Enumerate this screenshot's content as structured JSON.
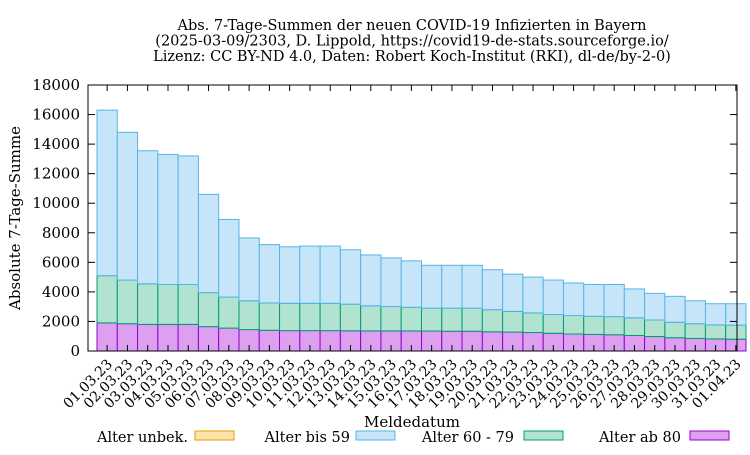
{
  "chart_data": {
    "type": "bar",
    "stacked": true,
    "title_lines": [
      "Abs. 7-Tage-Summen der neuen COVID-19 Infizierten in Bayern",
      "(2025-03-09/2303, D. Lippold, https://covid19-de-stats.sourceforge.io/",
      "Lizenz: CC BY-ND 4.0, Daten: Robert Koch-Institut (RKI), dl-de/by-2-0)"
    ],
    "xlabel": "Meldedatum",
    "ylabel": "Absolute 7-Tage-Summe",
    "ylim": [
      0,
      18000
    ],
    "yticks": [
      0,
      2000,
      4000,
      6000,
      8000,
      10000,
      12000,
      14000,
      16000,
      18000
    ],
    "grid": false,
    "legend_position": "bottom",
    "categories": [
      "01.03.23",
      "02.03.23",
      "03.03.23",
      "04.03.23",
      "05.03.23",
      "06.03.23",
      "07.03.23",
      "08.03.23",
      "09.03.23",
      "10.03.23",
      "11.03.23",
      "12.03.23",
      "13.03.23",
      "14.03.23",
      "15.03.23",
      "16.03.23",
      "17.03.23",
      "18.03.23",
      "19.03.23",
      "20.03.23",
      "21.03.23",
      "22.03.23",
      "23.03.23",
      "24.03.23",
      "25.03.23",
      "26.03.23",
      "27.03.23",
      "28.03.23",
      "29.03.23",
      "30.03.23",
      "31.03.23",
      "01.04.23"
    ],
    "series": [
      {
        "name": "Alter ab 80",
        "fill": "#dda0f0",
        "stroke": "#9400d3",
        "values": [
          1900,
          1850,
          1800,
          1800,
          1800,
          1650,
          1550,
          1450,
          1400,
          1380,
          1380,
          1380,
          1370,
          1360,
          1360,
          1360,
          1350,
          1340,
          1340,
          1300,
          1280,
          1250,
          1200,
          1150,
          1120,
          1100,
          1050,
          980,
          900,
          850,
          820,
          800
        ]
      },
      {
        "name": "Alter 60 - 79",
        "fill": "#b2e2d0",
        "stroke": "#009e73",
        "values": [
          3200,
          2950,
          2750,
          2700,
          2700,
          2300,
          2100,
          1950,
          1850,
          1850,
          1850,
          1850,
          1800,
          1700,
          1650,
          1600,
          1550,
          1560,
          1560,
          1500,
          1400,
          1330,
          1270,
          1250,
          1230,
          1230,
          1200,
          1120,
          1050,
          1000,
          950,
          950
        ]
      },
      {
        "name": "Alter bis 59",
        "fill": "#c6e5f8",
        "stroke": "#56b4e9",
        "values": [
          11200,
          10000,
          9000,
          8800,
          8700,
          6650,
          5250,
          4250,
          3950,
          3820,
          3870,
          3870,
          3680,
          3440,
          3290,
          3140,
          2900,
          2900,
          2900,
          2700,
          2520,
          2420,
          2330,
          2200,
          2150,
          2170,
          1950,
          1800,
          1750,
          1550,
          1430,
          1450
        ]
      },
      {
        "name": "Alter unbek.",
        "fill": "#fde3a7",
        "stroke": "#e69f00",
        "values": [
          0,
          0,
          0,
          0,
          0,
          0,
          0,
          0,
          0,
          0,
          0,
          0,
          0,
          0,
          0,
          0,
          0,
          0,
          0,
          0,
          0,
          0,
          0,
          0,
          0,
          0,
          0,
          0,
          0,
          0,
          0,
          0
        ]
      }
    ],
    "legend_order": [
      "Alter unbek.",
      "Alter bis 59",
      "Alter 60 - 79",
      "Alter ab 80"
    ]
  }
}
